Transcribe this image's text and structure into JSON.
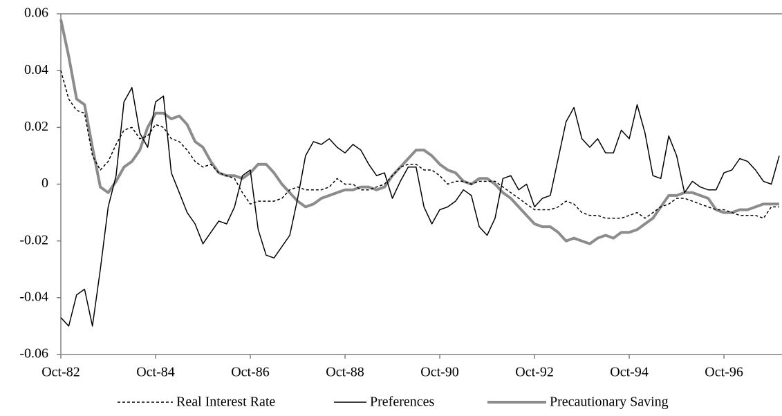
{
  "chart_data": {
    "type": "line",
    "categories": [
      "Oct-82",
      null,
      null,
      null,
      null,
      null,
      null,
      null,
      null,
      null,
      null,
      null,
      "Oct-84",
      null,
      null,
      null,
      null,
      null,
      null,
      null,
      null,
      null,
      null,
      null,
      "Oct-86",
      null,
      null,
      null,
      null,
      null,
      null,
      null,
      null,
      null,
      null,
      null,
      "Oct-88",
      null,
      null,
      null,
      null,
      null,
      null,
      null,
      null,
      null,
      null,
      null,
      "Oct-90",
      null,
      null,
      null,
      null,
      null,
      null,
      null,
      null,
      null,
      null,
      null,
      "Oct-92",
      null,
      null,
      null,
      null,
      null,
      null,
      null,
      null,
      null,
      null,
      null,
      "Oct-94",
      null,
      null,
      null,
      null,
      null,
      null,
      null,
      null,
      null,
      null,
      null,
      "Oct-96",
      null,
      null,
      null,
      null,
      null,
      null,
      null
    ],
    "series": [
      {
        "name": "Real Interest Rate",
        "color": "#000000",
        "line_style": "dashed",
        "width": 1.5,
        "values": [
          0.04,
          0.03,
          0.026,
          0.025,
          0.01,
          0.005,
          0.008,
          0.014,
          0.019,
          0.02,
          0.016,
          0.017,
          0.021,
          0.02,
          0.016,
          0.015,
          0.012,
          0.008,
          0.006,
          0.007,
          0.004,
          0.003,
          0.002,
          -0.003,
          -0.007,
          -0.006,
          -0.006,
          -0.006,
          -0.005,
          -0.002,
          -0.001,
          -0.002,
          -0.002,
          -0.002,
          -0.001,
          0.002,
          0.0,
          0.0,
          -0.002,
          -0.002,
          -0.001,
          0.0,
          0.003,
          0.006,
          0.007,
          0.007,
          0.005,
          0.005,
          0.003,
          0.0,
          0.001,
          0.001,
          0.0,
          0.001,
          0.001,
          0.001,
          -0.001,
          -0.003,
          -0.005,
          -0.007,
          -0.009,
          -0.009,
          -0.009,
          -0.008,
          -0.006,
          -0.007,
          -0.01,
          -0.011,
          -0.011,
          -0.012,
          -0.012,
          -0.012,
          -0.011,
          -0.01,
          -0.012,
          -0.01,
          -0.008,
          -0.007,
          -0.005,
          -0.005,
          -0.006,
          -0.007,
          -0.008,
          -0.009,
          -0.009,
          -0.01,
          -0.011,
          -0.011,
          -0.011,
          -0.012,
          -0.008,
          -0.008
        ]
      },
      {
        "name": "Preferences",
        "color": "#000000",
        "line_style": "solid",
        "width": 1.5,
        "values": [
          -0.047,
          -0.05,
          -0.039,
          -0.037,
          -0.05,
          -0.03,
          -0.008,
          0.003,
          0.029,
          0.034,
          0.018,
          0.013,
          0.029,
          0.031,
          0.004,
          -0.003,
          -0.01,
          -0.014,
          -0.021,
          -0.017,
          -0.013,
          -0.014,
          -0.008,
          0.003,
          0.005,
          -0.016,
          -0.025,
          -0.026,
          -0.022,
          -0.018,
          -0.005,
          0.01,
          0.015,
          0.014,
          0.016,
          0.013,
          0.011,
          0.014,
          0.012,
          0.007,
          0.003,
          0.004,
          -0.005,
          0.001,
          0.006,
          0.006,
          -0.008,
          -0.014,
          -0.009,
          -0.008,
          -0.006,
          -0.002,
          -0.004,
          -0.015,
          -0.018,
          -0.012,
          0.002,
          0.003,
          -0.002,
          0.0,
          -0.008,
          -0.005,
          -0.004,
          0.009,
          0.022,
          0.027,
          0.016,
          0.013,
          0.016,
          0.011,
          0.011,
          0.019,
          0.016,
          0.028,
          0.018,
          0.003,
          0.002,
          0.017,
          0.01,
          -0.003,
          0.001,
          -0.001,
          -0.002,
          -0.002,
          0.004,
          0.005,
          0.009,
          0.008,
          0.005,
          0.001,
          0.0,
          0.01
        ]
      },
      {
        "name": "Precautionary Saving",
        "color": "#8c8c8c",
        "line_style": "solid",
        "width": 4,
        "values": [
          0.058,
          0.045,
          0.03,
          0.028,
          0.013,
          -0.001,
          -0.003,
          0.001,
          0.006,
          0.008,
          0.012,
          0.02,
          0.025,
          0.025,
          0.023,
          0.024,
          0.021,
          0.015,
          0.013,
          0.008,
          0.004,
          0.003,
          0.003,
          0.002,
          0.004,
          0.007,
          0.007,
          0.004,
          0.0,
          -0.003,
          -0.006,
          -0.008,
          -0.007,
          -0.005,
          -0.004,
          -0.003,
          -0.002,
          -0.002,
          -0.001,
          -0.001,
          -0.002,
          -0.001,
          0.003,
          0.006,
          0.009,
          0.012,
          0.012,
          0.01,
          0.007,
          0.005,
          0.004,
          0.001,
          0.0,
          0.002,
          0.002,
          0.0,
          -0.003,
          -0.005,
          -0.008,
          -0.011,
          -0.014,
          -0.015,
          -0.015,
          -0.017,
          -0.02,
          -0.019,
          -0.02,
          -0.021,
          -0.019,
          -0.018,
          -0.019,
          -0.017,
          -0.017,
          -0.016,
          -0.014,
          -0.012,
          -0.008,
          -0.004,
          -0.004,
          -0.003,
          -0.003,
          -0.004,
          -0.005,
          -0.009,
          -0.01,
          -0.01,
          -0.009,
          -0.009,
          -0.008,
          -0.007,
          -0.007,
          -0.007
        ]
      }
    ],
    "ylim": [
      -0.06,
      0.06
    ],
    "yticks": [
      -0.06,
      -0.04,
      -0.02,
      0,
      0.02,
      0.04,
      0.06
    ],
    "grid": false,
    "legend": "bottom"
  }
}
